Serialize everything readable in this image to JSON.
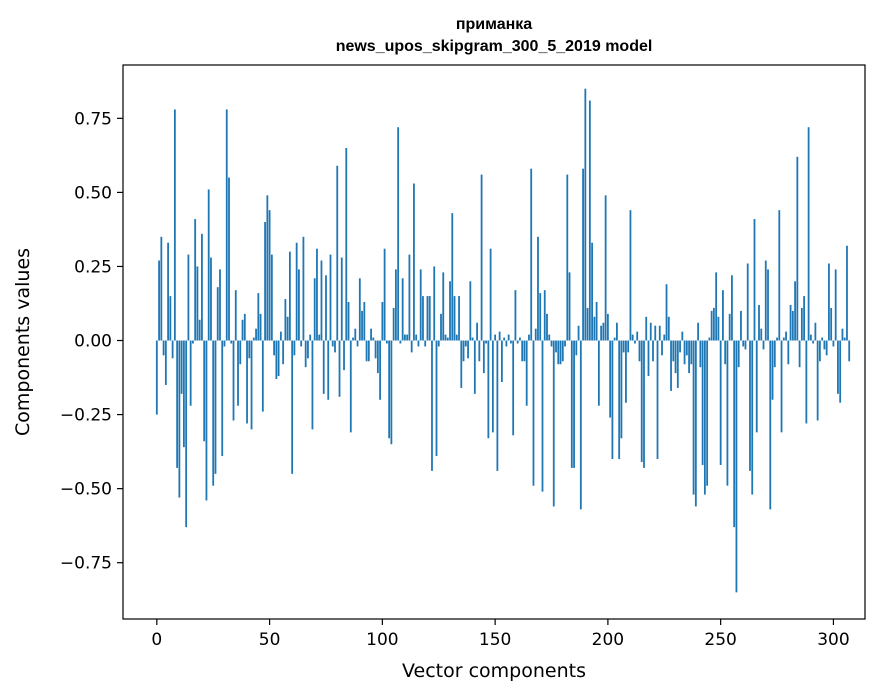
{
  "chart_data": {
    "type": "bar",
    "title": "приманка",
    "subtitle": "news_upos_skipgram_300_5_2019 model",
    "xlabel": "Vector components",
    "ylabel": "Components values",
    "xlim": [
      -15,
      314
    ],
    "ylim": [
      -0.94,
      0.93
    ],
    "xticks": [
      0,
      50,
      100,
      150,
      200,
      250,
      300
    ],
    "xtick_labels": [
      "0",
      "50",
      "100",
      "150",
      "200",
      "250",
      "300"
    ],
    "yticks": [
      0.75,
      0.5,
      0.25,
      0.0,
      -0.25,
      -0.5,
      -0.75
    ],
    "ytick_labels": [
      "0.75",
      "0.50",
      "0.25",
      "0.00",
      "−0.25",
      "−0.50",
      "−0.75"
    ],
    "grid": false,
    "legend": false,
    "bar_color": "#1f77b4",
    "x_start": 0,
    "values": [
      -0.25,
      0.27,
      0.35,
      -0.05,
      -0.15,
      0.33,
      0.15,
      -0.06,
      0.78,
      -0.43,
      -0.53,
      -0.18,
      -0.36,
      -0.63,
      0.29,
      -0.22,
      -0.01,
      0.41,
      0.25,
      0.07,
      0.36,
      -0.34,
      -0.54,
      0.51,
      0.28,
      -0.49,
      -0.45,
      0.18,
      0.24,
      -0.39,
      -0.02,
      0.78,
      0.55,
      -0.01,
      -0.27,
      0.17,
      -0.22,
      -0.08,
      0.07,
      0.09,
      -0.28,
      -0.06,
      -0.3,
      0.01,
      0.04,
      0.16,
      0.09,
      -0.24,
      0.4,
      0.49,
      0.44,
      0.29,
      -0.05,
      -0.13,
      -0.12,
      0.03,
      -0.08,
      0.14,
      0.08,
      0.3,
      -0.45,
      -0.05,
      0.33,
      0.24,
      -0.02,
      0.35,
      -0.09,
      -0.06,
      0.02,
      -0.3,
      0.21,
      0.31,
      0.02,
      0.27,
      -0.18,
      0.22,
      -0.2,
      0.29,
      -0.02,
      -0.04,
      0.59,
      -0.19,
      0.28,
      -0.1,
      0.65,
      0.13,
      -0.31,
      0.01,
      0.04,
      -0.02,
      0.21,
      0.1,
      0.13,
      -0.07,
      -0.07,
      0.04,
      0.01,
      -0.06,
      -0.11,
      -0.2,
      0.13,
      0.31,
      -0.01,
      -0.33,
      -0.35,
      0.11,
      0.24,
      0.72,
      -0.01,
      0.21,
      0.02,
      0.02,
      0.29,
      -0.04,
      0.53,
      0.02,
      -0.02,
      0.24,
      0.15,
      -0.02,
      0.15,
      0.15,
      -0.44,
      0.25,
      -0.39,
      -0.02,
      0.09,
      0.23,
      0.02,
      0.01,
      0.2,
      0.43,
      0.15,
      0.02,
      0.15,
      -0.16,
      -0.07,
      -0.02,
      -0.06,
      0.2,
      0.01,
      -0.18,
      0.06,
      -0.07,
      0.56,
      -0.11,
      -0.01,
      -0.33,
      0.31,
      -0.31,
      0.02,
      -0.44,
      0.03,
      -0.14,
      0.01,
      -0.02,
      0.02,
      -0.01,
      -0.32,
      0.17,
      -0.01,
      0.01,
      -0.07,
      -0.07,
      -0.22,
      0.02,
      0.58,
      -0.49,
      0.04,
      0.35,
      0.16,
      -0.51,
      0.17,
      0.09,
      0.02,
      -0.02,
      -0.56,
      -0.04,
      -0.08,
      -0.08,
      -0.07,
      -0.02,
      0.56,
      0.23,
      -0.43,
      -0.43,
      -0.05,
      0.05,
      -0.57,
      0.58,
      0.85,
      0.11,
      0.81,
      0.33,
      0.08,
      0.13,
      -0.22,
      0.05,
      0.06,
      0.49,
      0.09,
      -0.26,
      -0.4,
      0.01,
      0.06,
      -0.4,
      -0.33,
      -0.04,
      -0.21,
      -0.04,
      0.44,
      0.02,
      -0.01,
      0.03,
      -0.07,
      -0.41,
      -0.43,
      0.08,
      -0.12,
      0.06,
      -0.07,
      0.05,
      -0.4,
      0.05,
      -0.05,
      0.02,
      0.19,
      0.08,
      -0.17,
      -0.07,
      -0.11,
      -0.16,
      -0.04,
      0.03,
      -0.08,
      -0.05,
      -0.11,
      -0.08,
      -0.52,
      -0.56,
      0.06,
      -0.09,
      -0.42,
      -0.52,
      -0.49,
      0.01,
      0.1,
      0.11,
      0.23,
      0.08,
      -0.42,
      0.17,
      -0.08,
      -0.49,
      0.09,
      0.22,
      -0.63,
      -0.85,
      -0.09,
      0.1,
      -0.02,
      -0.03,
      0.26,
      -0.44,
      -0.52,
      0.41,
      -0.31,
      0.12,
      0.04,
      -0.03,
      0.27,
      0.24,
      -0.57,
      -0.2,
      -0.09,
      0.01,
      0.44,
      -0.31,
      0.01,
      0.03,
      -0.08,
      0.12,
      0.1,
      0.2,
      0.62,
      -0.09,
      0.11,
      0.15,
      -0.28,
      0.72,
      0.02,
      -0.01,
      0.06,
      -0.27,
      -0.07,
      0.01,
      -0.03,
      -0.05,
      0.26,
      0.11,
      -0.02,
      0.24,
      -0.18,
      -0.21,
      0.04,
      0.01,
      0.32,
      -0.07
    ]
  }
}
